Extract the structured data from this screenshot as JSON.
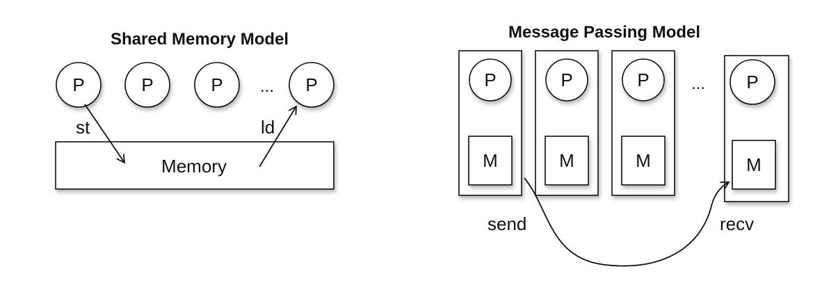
{
  "shared_memory": {
    "title": "Shared Memory Model",
    "processor_label": "P",
    "ellipsis": "...",
    "memory_label": "Memory",
    "store_label": "st",
    "load_label": "ld"
  },
  "message_passing": {
    "title": "Message Passing Model",
    "processor_label": "P",
    "memory_label": "M",
    "ellipsis": "...",
    "send_label": "send",
    "recv_label": "recv"
  }
}
